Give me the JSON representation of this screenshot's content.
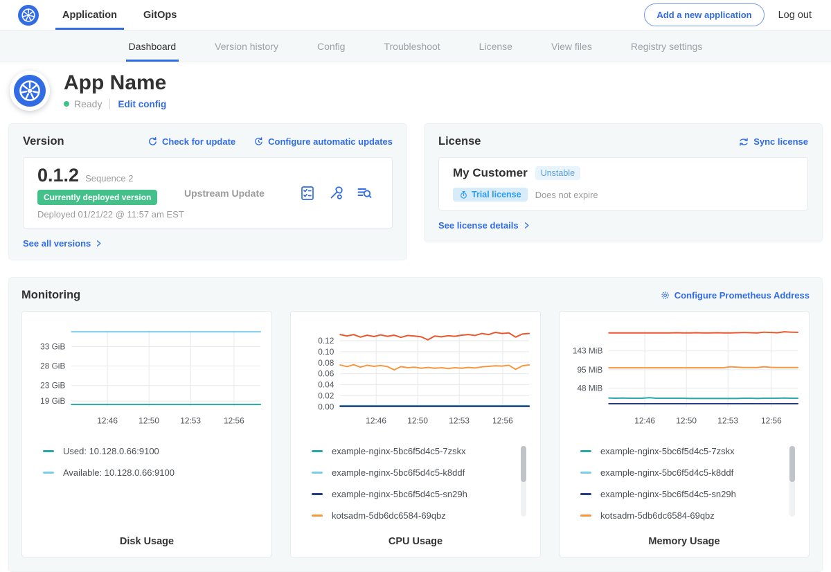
{
  "colors": {
    "accent_blue": "#326CE5",
    "deployed_green": "#44c18a",
    "panel_bg": "#f4f8f9",
    "muted_gray": "#9b9b9b",
    "teal": "#2aa7a8",
    "light_blue": "#79cdf1",
    "navy": "#253e80",
    "orange": "#f8963d",
    "red_orange": "#e9562c"
  },
  "navbar": {
    "tabs": [
      {
        "label": "Application",
        "active": true
      },
      {
        "label": "GitOps",
        "active": false
      }
    ],
    "add_app_button": "Add a new application",
    "logout": "Log out"
  },
  "subnav": {
    "tabs": [
      "Dashboard",
      "Version history",
      "Config",
      "Troubleshoot",
      "License",
      "View files",
      "Registry settings"
    ],
    "active": "Dashboard"
  },
  "app_header": {
    "name": "App Name",
    "status": "Ready",
    "edit_config": "Edit config"
  },
  "version_card": {
    "title": "Version",
    "check_update": "Check for update",
    "configure_updates": "Configure automatic updates",
    "version": "0.1.2",
    "sequence": "Sequence 2",
    "deployed_badge": "Currently deployed version",
    "deployed_at": "Deployed 01/21/22 @ 11:57 am EST",
    "source": "Upstream Update",
    "see_all": "See all versions"
  },
  "license_card": {
    "title": "License",
    "sync": "Sync license",
    "customer": "My Customer",
    "channel": "Unstable",
    "type_badge": "Trial license",
    "expiry": "Does not expire",
    "details_link": "See license details"
  },
  "monitoring": {
    "title": "Monitoring",
    "configure_link": "Configure Prometheus Address"
  },
  "chart_data": [
    {
      "type": "line",
      "title": "Disk Usage",
      "ylim": [
        17.5,
        37.2
      ],
      "yticks": [
        {
          "v": 19,
          "label": "19 GiB"
        },
        {
          "v": 23,
          "label": "23 GiB"
        },
        {
          "v": 28,
          "label": "28 GiB"
        },
        {
          "v": 33,
          "label": "33 GiB"
        }
      ],
      "xticks": [
        {
          "f": 0.19,
          "label": "12:46"
        },
        {
          "f": 0.41,
          "label": "12:50"
        },
        {
          "f": 0.63,
          "label": "12:53"
        },
        {
          "f": 0.86,
          "label": "12:56"
        }
      ],
      "series": [
        {
          "name": "Used: 10.128.0.66:9100",
          "color": "#2aa7a8",
          "values": [
            18.1,
            18.1
          ]
        },
        {
          "name": "Available: 10.128.0.66:9100",
          "color": "#79cdf1",
          "values": [
            36.8,
            36.8
          ]
        }
      ],
      "legend": [
        {
          "color": "#2aa7a8",
          "label": "Used: 10.128.0.66:9100"
        },
        {
          "color": "#79cdf1",
          "label": "Available: 10.128.0.66:9100"
        }
      ],
      "scrollbar": false
    },
    {
      "type": "line",
      "title": "CPU Usage",
      "ylim": [
        0,
        0.139
      ],
      "yticks": [
        {
          "v": 0.0,
          "label": "0.00"
        },
        {
          "v": 0.02,
          "label": "0.02"
        },
        {
          "v": 0.04,
          "label": "0.04"
        },
        {
          "v": 0.06,
          "label": "0.06"
        },
        {
          "v": 0.08,
          "label": "0.08"
        },
        {
          "v": 0.1,
          "label": "0.10"
        },
        {
          "v": 0.12,
          "label": "0.12"
        }
      ],
      "xticks": [
        {
          "f": 0.19,
          "label": "12:46"
        },
        {
          "f": 0.41,
          "label": "12:50"
        },
        {
          "f": 0.63,
          "label": "12:53"
        },
        {
          "f": 0.86,
          "label": "12:56"
        }
      ],
      "series": [
        {
          "name": "example-nginx-5bc6f5d4c5-7zskx",
          "color": "#2aa7a8",
          "values": [
            0.0018,
            0.0018
          ]
        },
        {
          "name": "example-nginx-5bc6f5d4c5-sn29h",
          "color": "#253e80",
          "values": [
            0.0009,
            0.0009
          ]
        },
        {
          "name": "kotsadm-5db6dc6584-69qbz",
          "color": "#f8963d",
          "values": [
            0.076,
            0.073,
            0.0765,
            0.072,
            0.0755,
            0.0735,
            0.075,
            0.073,
            0.067,
            0.073,
            0.071,
            0.072,
            0.07,
            0.0715,
            0.07,
            0.071,
            0.0695,
            0.071,
            0.07,
            0.0715,
            0.0705,
            0.0725,
            0.0735,
            0.0745,
            0.074,
            0.0755,
            0.068,
            0.0745,
            0.076
          ]
        },
        {
          "name": "",
          "color": "#e9562c",
          "values": [
            0.131,
            0.1285,
            0.131,
            0.1265,
            0.13,
            0.1275,
            0.1305,
            0.128,
            0.13,
            0.126,
            0.1295,
            0.1285,
            0.127,
            0.1215,
            0.1285,
            0.127,
            0.129,
            0.128,
            0.13,
            0.131,
            0.1295,
            0.133,
            0.131,
            0.135,
            0.133,
            0.134,
            0.1265,
            0.132,
            0.133
          ]
        }
      ],
      "legend": [
        {
          "color": "#2aa7a8",
          "label": "example-nginx-5bc6f5d4c5-7zskx"
        },
        {
          "color": "#79cdf1",
          "label": "example-nginx-5bc6f5d4c5-k8ddf"
        },
        {
          "color": "#253e80",
          "label": "example-nginx-5bc6f5d4c5-sn29h"
        },
        {
          "color": "#f8963d",
          "label": "kotsadm-5db6dc6584-69qbz"
        }
      ],
      "scrollbar": true
    },
    {
      "type": "line",
      "title": "Memory Usage",
      "ylim": [
        0,
        196
      ],
      "yticks": [
        {
          "v": 48,
          "label": "48 MiB"
        },
        {
          "v": 95,
          "label": "95 MiB"
        },
        {
          "v": 143,
          "label": "143 MiB"
        }
      ],
      "xticks": [
        {
          "f": 0.19,
          "label": "12:46"
        },
        {
          "f": 0.41,
          "label": "12:50"
        },
        {
          "f": 0.63,
          "label": "12:53"
        },
        {
          "f": 0.86,
          "label": "12:56"
        }
      ],
      "series": [
        {
          "name": "example-nginx-5bc6f5d4c5-sn29h",
          "color": "#253e80",
          "values": [
            8,
            8
          ]
        },
        {
          "name": "example-nginx-5bc6f5d4c5-7zskx",
          "color": "#2aa7a8",
          "values": [
            22.5,
            22,
            22.5,
            22,
            22,
            22,
            23.5,
            22,
            22,
            22,
            22,
            22,
            21.5,
            21.5,
            21.5,
            21.5,
            21.5,
            21.5,
            21.5,
            21.5,
            22,
            22,
            21.5,
            22,
            22,
            22,
            22.5,
            22,
            22
          ]
        },
        {
          "name": "kotsadm-5db6dc6584-69qbz",
          "color": "#f8963d",
          "values": [
            100,
            100,
            100,
            100,
            100,
            100,
            100,
            100,
            100,
            100,
            100,
            100,
            100,
            100,
            100,
            100,
            100,
            100,
            102.5,
            101.5,
            100.5,
            100.5,
            100.5,
            102.5,
            101,
            100.5,
            100.5,
            100.5,
            100.5
          ]
        },
        {
          "name": "",
          "color": "#e9562c",
          "values": [
            189,
            189,
            189,
            189,
            189,
            189,
            189,
            189,
            189,
            189,
            189.5,
            189,
            189,
            189.5,
            189,
            189,
            189.5,
            189,
            189,
            189.5,
            190,
            189.5,
            189,
            191,
            190,
            189.5,
            192,
            191,
            190.5
          ]
        }
      ],
      "legend": [
        {
          "color": "#2aa7a8",
          "label": "example-nginx-5bc6f5d4c5-7zskx"
        },
        {
          "color": "#79cdf1",
          "label": "example-nginx-5bc6f5d4c5-k8ddf"
        },
        {
          "color": "#253e80",
          "label": "example-nginx-5bc6f5d4c5-sn29h"
        },
        {
          "color": "#f8963d",
          "label": "kotsadm-5db6dc6584-69qbz"
        }
      ],
      "scrollbar": true
    }
  ]
}
